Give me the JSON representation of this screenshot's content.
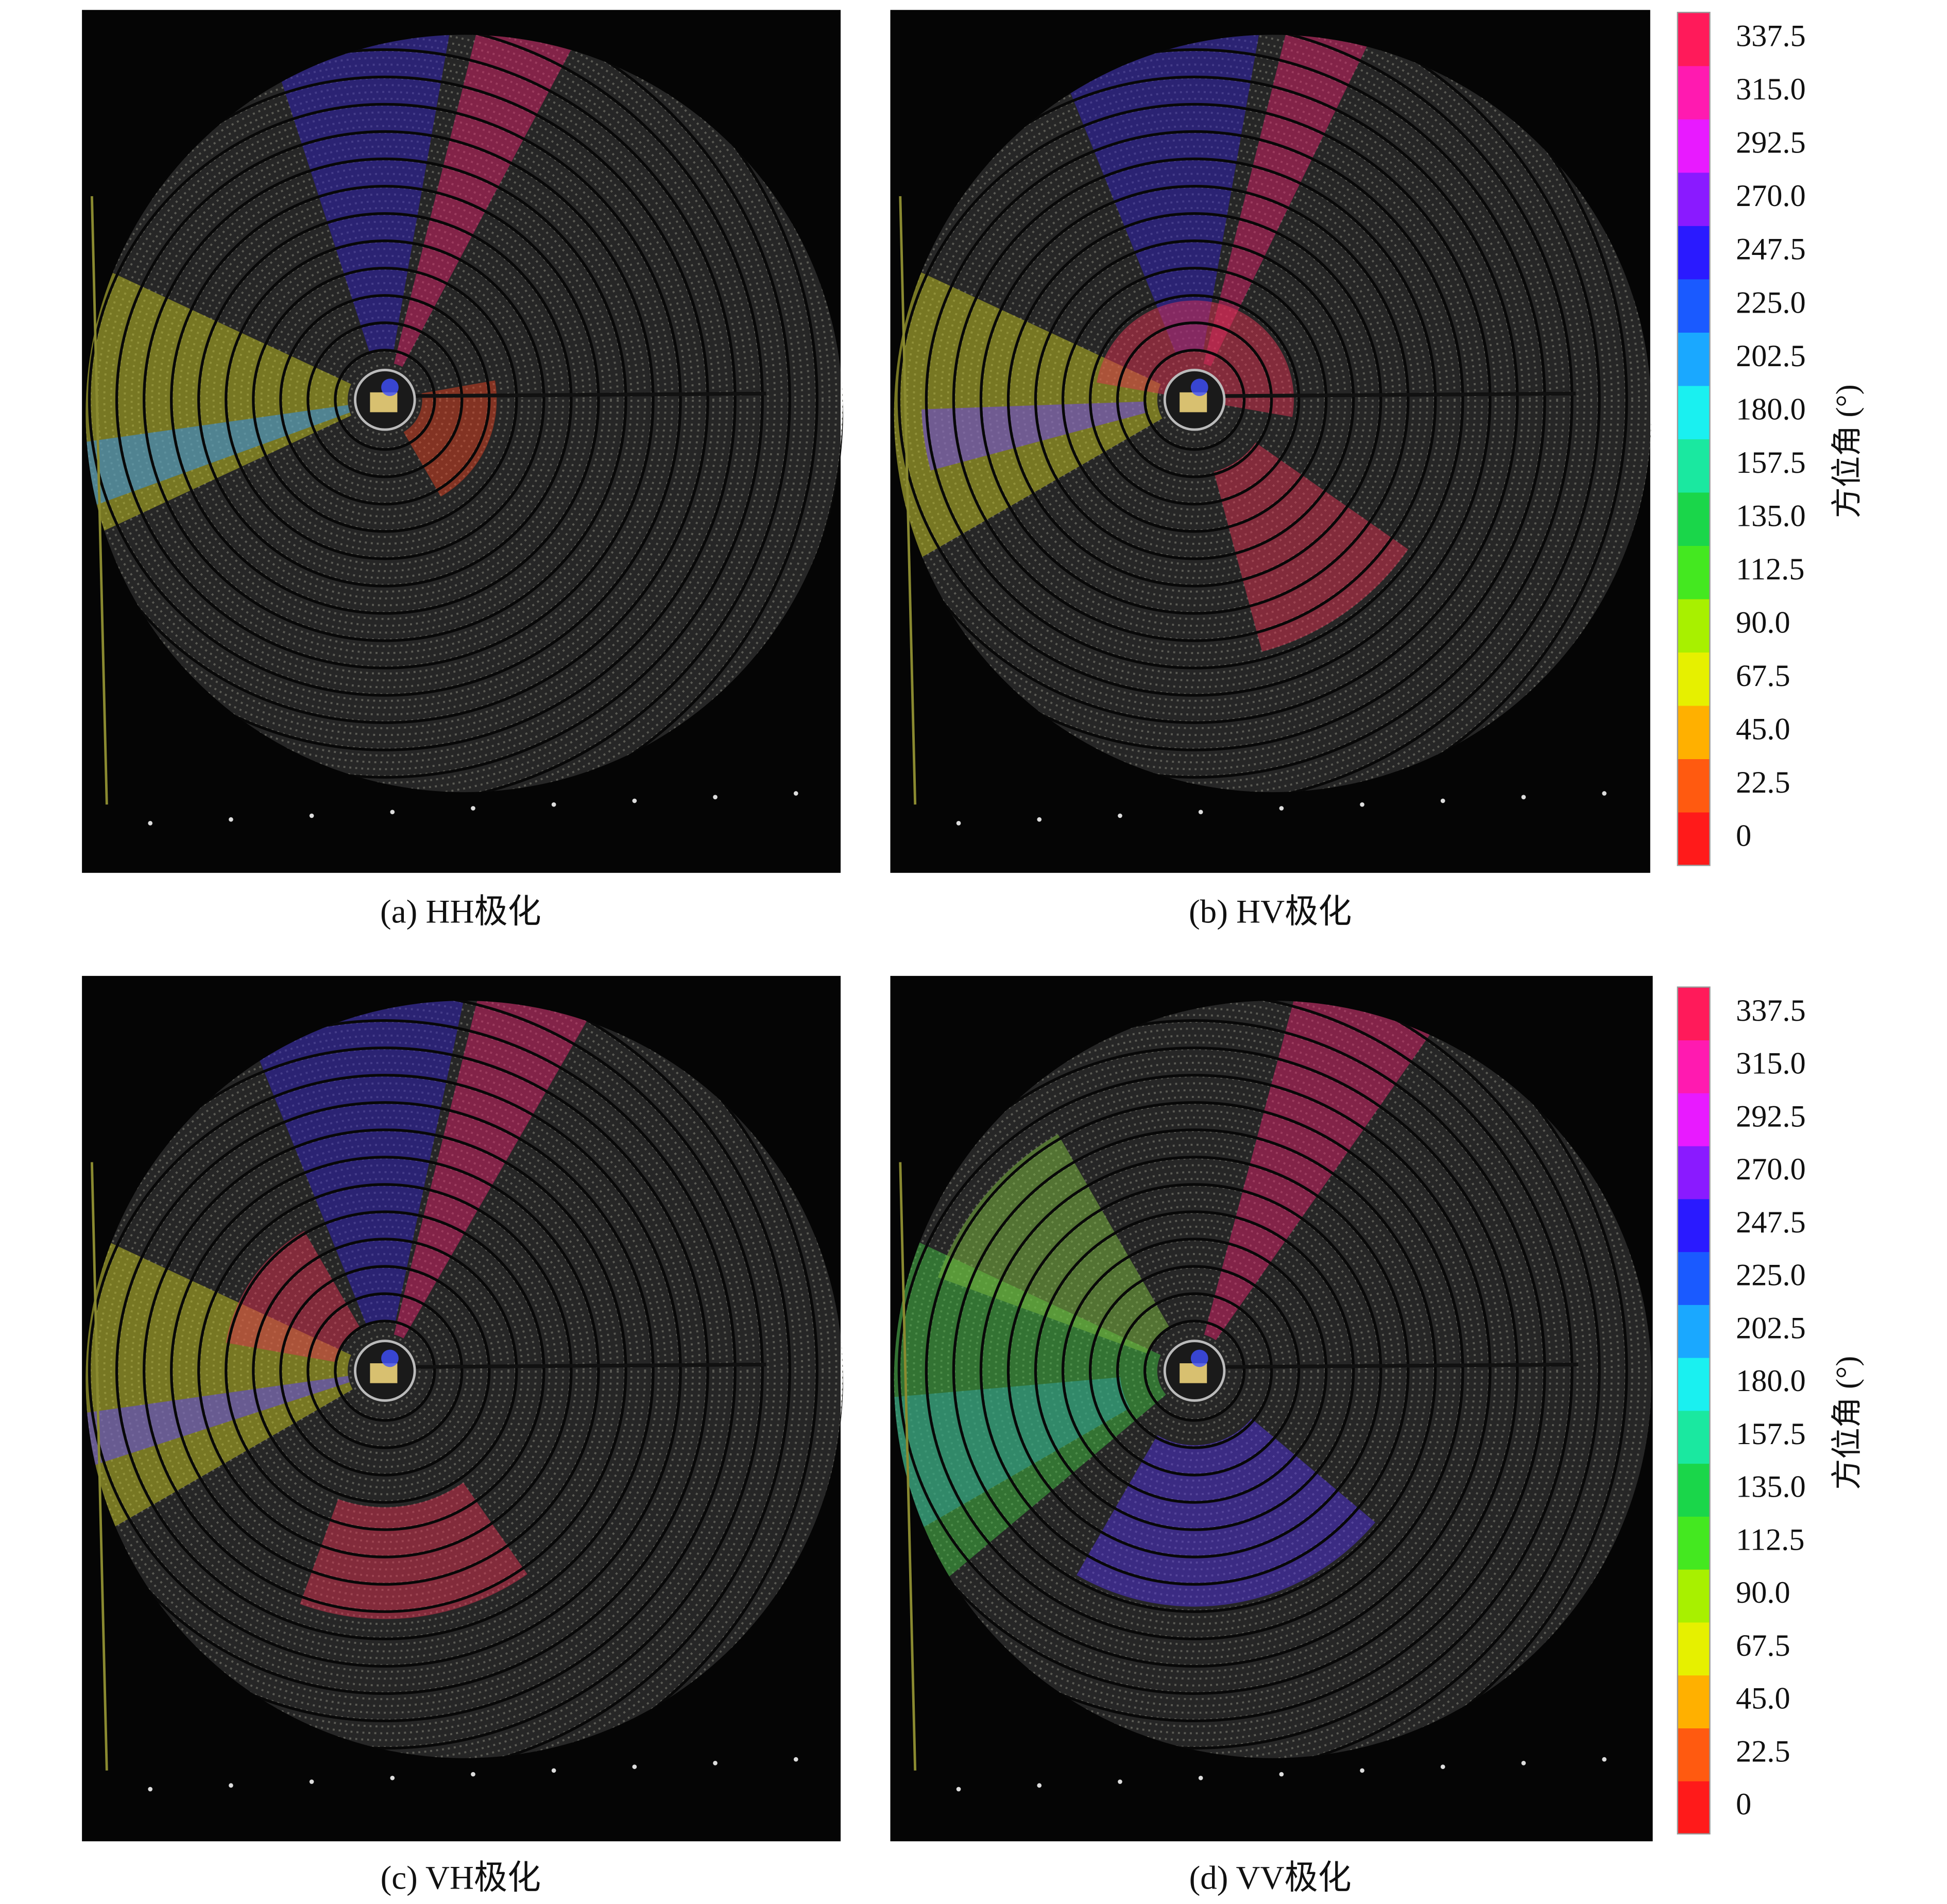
{
  "panels": [
    {
      "caption": "(a) HH极化"
    },
    {
      "caption": "(b) HV极化"
    },
    {
      "caption": "(c) VH极化"
    },
    {
      "caption": "(d) VV极化"
    }
  ],
  "colorbars": [
    {
      "label": "方位角 (°)",
      "ticks": [
        "0",
        "22.5",
        "45.0",
        "67.5",
        "90.0",
        "112.5",
        "135.0",
        "157.5",
        "180.0",
        "202.5",
        "225.0",
        "247.5",
        "270.0",
        "292.5",
        "315.0",
        "337.5"
      ],
      "colors": [
        "#ff1a1a",
        "#ff5a10",
        "#ffb000",
        "#e6f000",
        "#a8f000",
        "#44e820",
        "#1ad64a",
        "#1ae8a0",
        "#1af0f0",
        "#1aa8ff",
        "#1a5aff",
        "#2a1aff",
        "#8a1aff",
        "#e81aff",
        "#ff1ab0",
        "#ff1a5a"
      ]
    },
    {
      "label": "方位角 (°)",
      "ticks": [
        "0",
        "22.5",
        "45.0",
        "67.5",
        "90.0",
        "112.5",
        "135.0",
        "157.5",
        "180.0",
        "202.5",
        "225.0",
        "247.5",
        "270.0",
        "292.5",
        "315.0",
        "337.5"
      ],
      "colors": [
        "#ff1a1a",
        "#ff5a10",
        "#ffb000",
        "#e6f000",
        "#a8f000",
        "#44e820",
        "#1ad64a",
        "#1ae8a0",
        "#1af0f0",
        "#1aa8ff",
        "#1a5aff",
        "#2a1aff",
        "#8a1aff",
        "#e81aff",
        "#ff1ab0",
        "#ff1a5a"
      ]
    }
  ]
}
